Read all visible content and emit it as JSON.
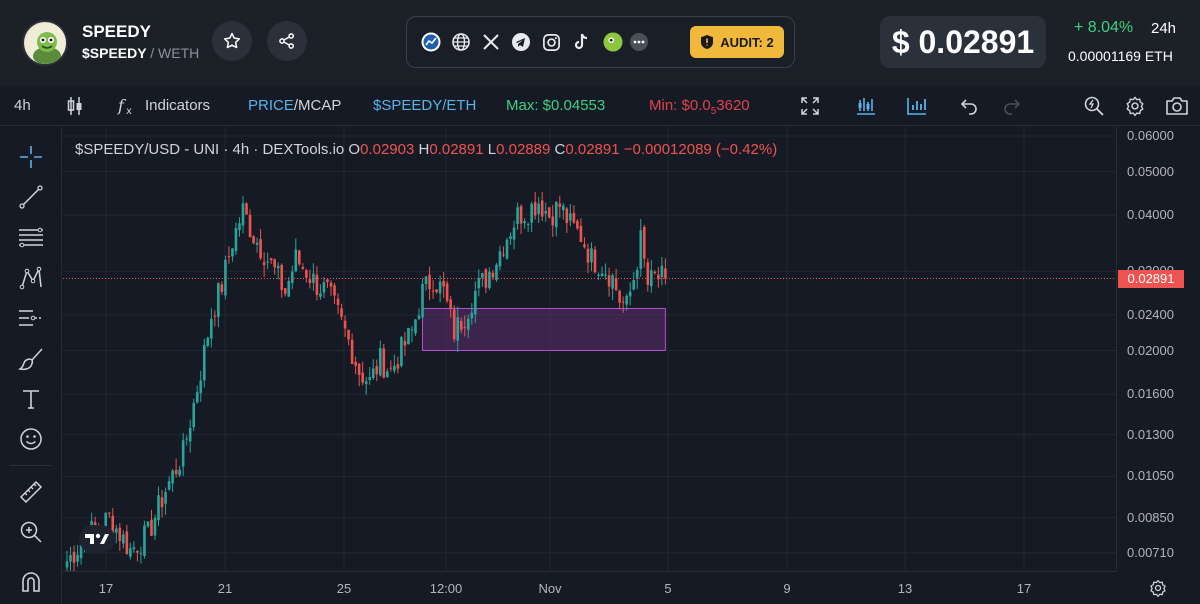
{
  "header": {
    "token_name": "SPEEDY",
    "pair_base": "$SPEEDY",
    "pair_quote": "/ WETH",
    "audit_label": "AUDIT: 2",
    "price": "$ 0.02891",
    "change": "+ 8.04%",
    "change_period": "24h",
    "eth_price": "0.00001169  ETH",
    "social_icons": [
      "dextools-icon",
      "globe-icon",
      "x-icon",
      "telegram-icon",
      "instagram-icon",
      "tiktok-icon",
      "coingecko-icon",
      "more-icon"
    ]
  },
  "toolbar": {
    "interval": "4h",
    "indicators": "Indicators",
    "price_label": "PRICE",
    "mcap_label": "/MCAP",
    "pair_label": "$SPEEDY/ETH",
    "max_label": "Max: $0.04553",
    "min_label": "Min: $0.0",
    "min_sub": "5",
    "min_tail": "3620"
  },
  "legend": {
    "symbol": "$SPEEDY/USD - UNI · 4h · DEXTools.io",
    "o_label": "O",
    "o_value": "0.02903",
    "h_label": "H",
    "h_value": "0.02891",
    "l_label": "L",
    "l_value": "0.02889",
    "c_label": "C",
    "c_value": "0.02891",
    "change": "−0.00012089 (−0.42%)"
  },
  "colors": {
    "up": "#26a69a",
    "down": "#ef5350",
    "zone_fill": "#5c2d6e",
    "zone_border": "#b64fd6",
    "accent": "#5ab2e8",
    "max": "#3fcf82",
    "min": "#e0434b"
  },
  "chart_data": {
    "type": "candlestick",
    "symbol": "$SPEEDY/USD",
    "interval": "4h",
    "scale": "log",
    "ylim": [
      0.0066,
      0.0625
    ],
    "y_ticks": [
      0.06,
      0.05,
      0.04,
      0.03,
      0.024,
      0.02,
      0.016,
      0.013,
      0.0105,
      0.0085,
      0.0071
    ],
    "y_tick_labels": [
      "0.06000",
      "0.05000",
      "0.04000",
      "0.03000",
      "0.02400",
      "0.02000",
      "0.01600",
      "0.01300",
      "0.01050",
      "0.00850",
      "0.00710"
    ],
    "x_tick_labels": [
      "17",
      "21",
      "25",
      "12:00",
      "Nov",
      "5",
      "9",
      "13",
      "17"
    ],
    "last_price": 0.02891,
    "last_price_label": "0.02891",
    "zone": {
      "from_candle": 101,
      "to_candle": 170,
      "low": 0.02,
      "high": 0.0248
    },
    "close_anchors": [
      [
        0,
        0.0068
      ],
      [
        6,
        0.0078
      ],
      [
        12,
        0.0085
      ],
      [
        18,
        0.0072
      ],
      [
        23,
        0.0078
      ],
      [
        28,
        0.0098
      ],
      [
        33,
        0.0118
      ],
      [
        38,
        0.018
      ],
      [
        41,
        0.024
      ],
      [
        44,
        0.028
      ],
      [
        47,
        0.035
      ],
      [
        50,
        0.041
      ],
      [
        53,
        0.036
      ],
      [
        56,
        0.033
      ],
      [
        59,
        0.03
      ],
      [
        62,
        0.027
      ],
      [
        65,
        0.032
      ],
      [
        68,
        0.03
      ],
      [
        71,
        0.028
      ],
      [
        74,
        0.027
      ],
      [
        77,
        0.024
      ],
      [
        80,
        0.021
      ],
      [
        83,
        0.018
      ],
      [
        86,
        0.017
      ],
      [
        89,
        0.019
      ],
      [
        92,
        0.018
      ],
      [
        95,
        0.02
      ],
      [
        98,
        0.022
      ],
      [
        101,
        0.027
      ],
      [
        104,
        0.029
      ],
      [
        107,
        0.027
      ],
      [
        110,
        0.022
      ],
      [
        113,
        0.024
      ],
      [
        116,
        0.027
      ],
      [
        119,
        0.029
      ],
      [
        122,
        0.032
      ],
      [
        125,
        0.036
      ],
      [
        128,
        0.04
      ],
      [
        131,
        0.041
      ],
      [
        134,
        0.043
      ],
      [
        137,
        0.04
      ],
      [
        140,
        0.042
      ],
      [
        143,
        0.038
      ],
      [
        146,
        0.036
      ],
      [
        149,
        0.032
      ],
      [
        152,
        0.031
      ],
      [
        155,
        0.029
      ],
      [
        157,
        0.026
      ],
      [
        159,
        0.025
      ],
      [
        161,
        0.029
      ],
      [
        163,
        0.035
      ],
      [
        165,
        0.028
      ],
      [
        167,
        0.029
      ],
      [
        170,
        0.02891
      ]
    ]
  }
}
